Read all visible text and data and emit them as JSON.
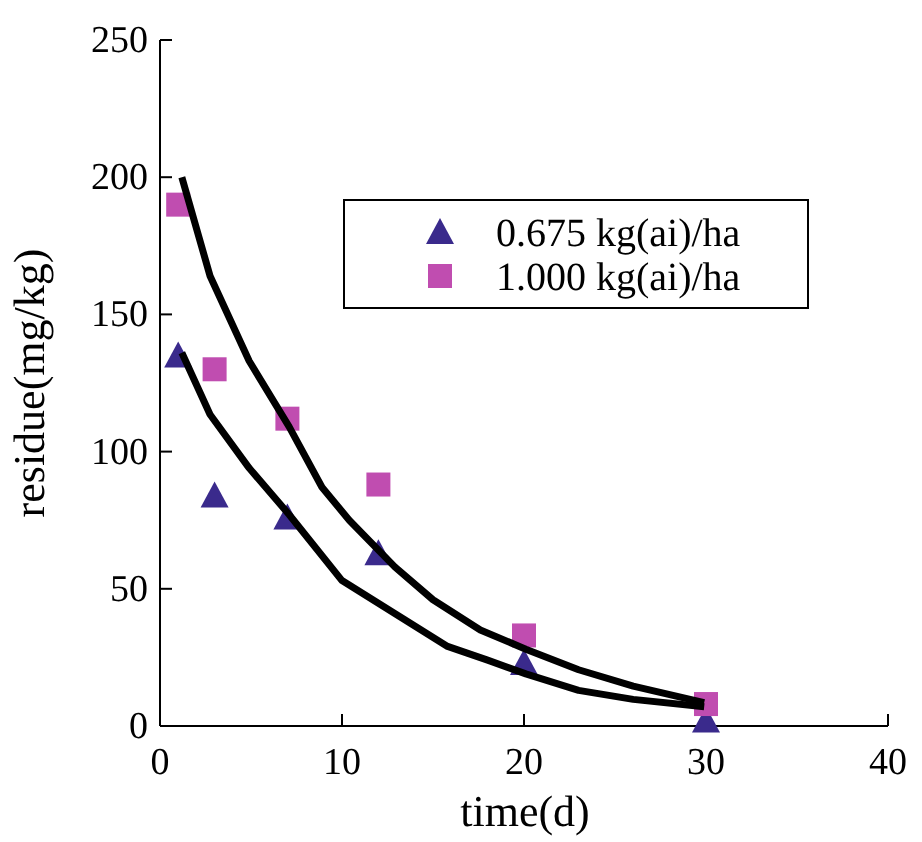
{
  "chart_data": {
    "type": "scatter",
    "xlabel": "time(d)",
    "ylabel": "residue(mg/kg)",
    "xlim": [
      0,
      40
    ],
    "xticks": [
      0,
      10,
      20,
      30,
      40
    ],
    "ylim": [
      0,
      250
    ],
    "yticks": [
      0,
      50,
      100,
      150,
      200,
      250
    ],
    "legend": "top right",
    "grid": false,
    "series": [
      {
        "name": "0.675 kg(ai)/ha",
        "color": "#3a2a8c",
        "marker": "triangle",
        "x": [
          1,
          3,
          7,
          12,
          20,
          30
        ],
        "values": [
          135,
          84,
          76,
          63,
          23,
          2
        ]
      },
      {
        "name": "1.000 kg(ai)/ha",
        "color": "#c04db0",
        "marker": "square",
        "x": [
          1,
          3,
          7,
          12,
          20,
          30
        ],
        "values": [
          190,
          130,
          112,
          88,
          33,
          8
        ]
      },
      {
        "type": "line",
        "color": "#000000",
        "marker": "none",
        "x": [
          1.2,
          2.75,
          4.9,
          7.1,
          8.9,
          10.4,
          12.9,
          15,
          17.6,
          20.1,
          23,
          26,
          29.9
        ],
        "values": [
          200,
          164,
          133,
          109,
          87,
          75,
          58,
          46,
          35,
          28,
          20.5,
          14.5,
          8.5
        ]
      },
      {
        "type": "line",
        "color": "#000000",
        "marker": "none",
        "x": [
          1.2,
          2.75,
          4.9,
          7.1,
          10,
          12.9,
          15.8,
          18,
          20.1,
          23,
          26,
          29.9
        ],
        "values": [
          136,
          113.5,
          94,
          77,
          53,
          41,
          29,
          24,
          19,
          13,
          9.7,
          7
        ]
      }
    ]
  }
}
